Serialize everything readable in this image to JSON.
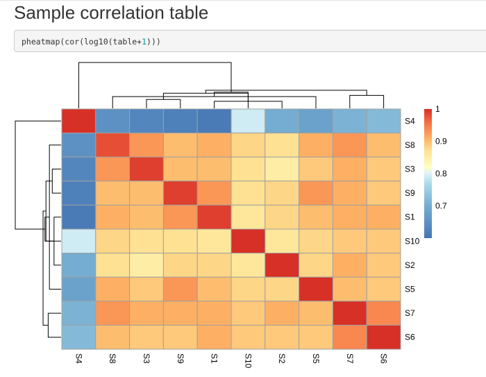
{
  "page": {
    "title": "Sample correlation table",
    "code": {
      "prefix": "pheatmap(cor(log10(table+",
      "number": "1",
      "suffix": ")))"
    }
  },
  "chart_data": {
    "type": "heatmap",
    "title": "",
    "rows": [
      "S4",
      "S8",
      "S3",
      "S9",
      "S1",
      "S10",
      "S2",
      "S5",
      "S7",
      "S6"
    ],
    "columns": [
      "S4",
      "S8",
      "S3",
      "S9",
      "S1",
      "S10",
      "S2",
      "S5",
      "S7",
      "S6"
    ],
    "values": [
      [
        1.0,
        0.65,
        0.63,
        0.62,
        0.61,
        0.79,
        0.7,
        0.68,
        0.71,
        0.72
      ],
      [
        0.65,
        0.98,
        0.93,
        0.9,
        0.91,
        0.88,
        0.87,
        0.91,
        0.93,
        0.9
      ],
      [
        0.63,
        0.93,
        0.99,
        0.9,
        0.9,
        0.87,
        0.85,
        0.89,
        0.91,
        0.89
      ],
      [
        0.62,
        0.9,
        0.9,
        0.99,
        0.93,
        0.87,
        0.88,
        0.93,
        0.91,
        0.89
      ],
      [
        0.61,
        0.91,
        0.9,
        0.93,
        0.99,
        0.86,
        0.88,
        0.9,
        0.91,
        0.91
      ],
      [
        0.79,
        0.88,
        0.87,
        0.87,
        0.86,
        1.0,
        0.86,
        0.88,
        0.89,
        0.89
      ],
      [
        0.7,
        0.87,
        0.85,
        0.88,
        0.88,
        0.86,
        1.0,
        0.88,
        0.91,
        0.89
      ],
      [
        0.68,
        0.91,
        0.89,
        0.93,
        0.9,
        0.88,
        0.88,
        1.0,
        0.9,
        0.89
      ],
      [
        0.71,
        0.93,
        0.91,
        0.91,
        0.91,
        0.89,
        0.91,
        0.9,
        1.0,
        0.94
      ],
      [
        0.72,
        0.9,
        0.89,
        0.89,
        0.91,
        0.89,
        0.89,
        0.89,
        0.94,
        1.0
      ]
    ],
    "color_range": [
      0.6,
      1.0
    ],
    "legend": {
      "ticks": [
        1,
        0.9,
        0.8,
        0.7
      ],
      "tick_labels": [
        "1",
        "0.9",
        "0.8",
        "0.7"
      ],
      "position": "right"
    },
    "colors": {
      "low": "#4575b4",
      "mid": "#ffffbf",
      "high": "#d73027",
      "cell_border": "#a0a0a0",
      "dendrogram": "#000000"
    },
    "row_dendrogram": [
      {
        "left": 4,
        "right": 6,
        "height": 0.02
      },
      {
        "left": 2,
        "right": 3,
        "height": 0.03
      },
      {
        "left": 1,
        "right": 7,
        "height": 0.05
      },
      {
        "left": 8,
        "right": 9,
        "height": 0.06
      },
      {
        "left": 10,
        "right": 11,
        "height": 0.08
      },
      {
        "left": 5,
        "right": 12,
        "height": 0.09
      },
      {
        "left": 13,
        "right": 14,
        "height": 0.11
      },
      {
        "left": 0,
        "right": 15,
        "height": 0.6
      }
    ],
    "column_dendrogram": [
      {
        "left": 4,
        "right": 6,
        "height": 0.02
      },
      {
        "left": 2,
        "right": 3,
        "height": 0.03
      },
      {
        "left": 1,
        "right": 7,
        "height": 0.05
      },
      {
        "left": 8,
        "right": 9,
        "height": 0.06
      },
      {
        "left": 10,
        "right": 11,
        "height": 0.08
      },
      {
        "left": 5,
        "right": 12,
        "height": 0.09
      },
      {
        "left": 13,
        "right": 14,
        "height": 0.11
      },
      {
        "left": 0,
        "right": 15,
        "height": 0.6
      }
    ]
  }
}
